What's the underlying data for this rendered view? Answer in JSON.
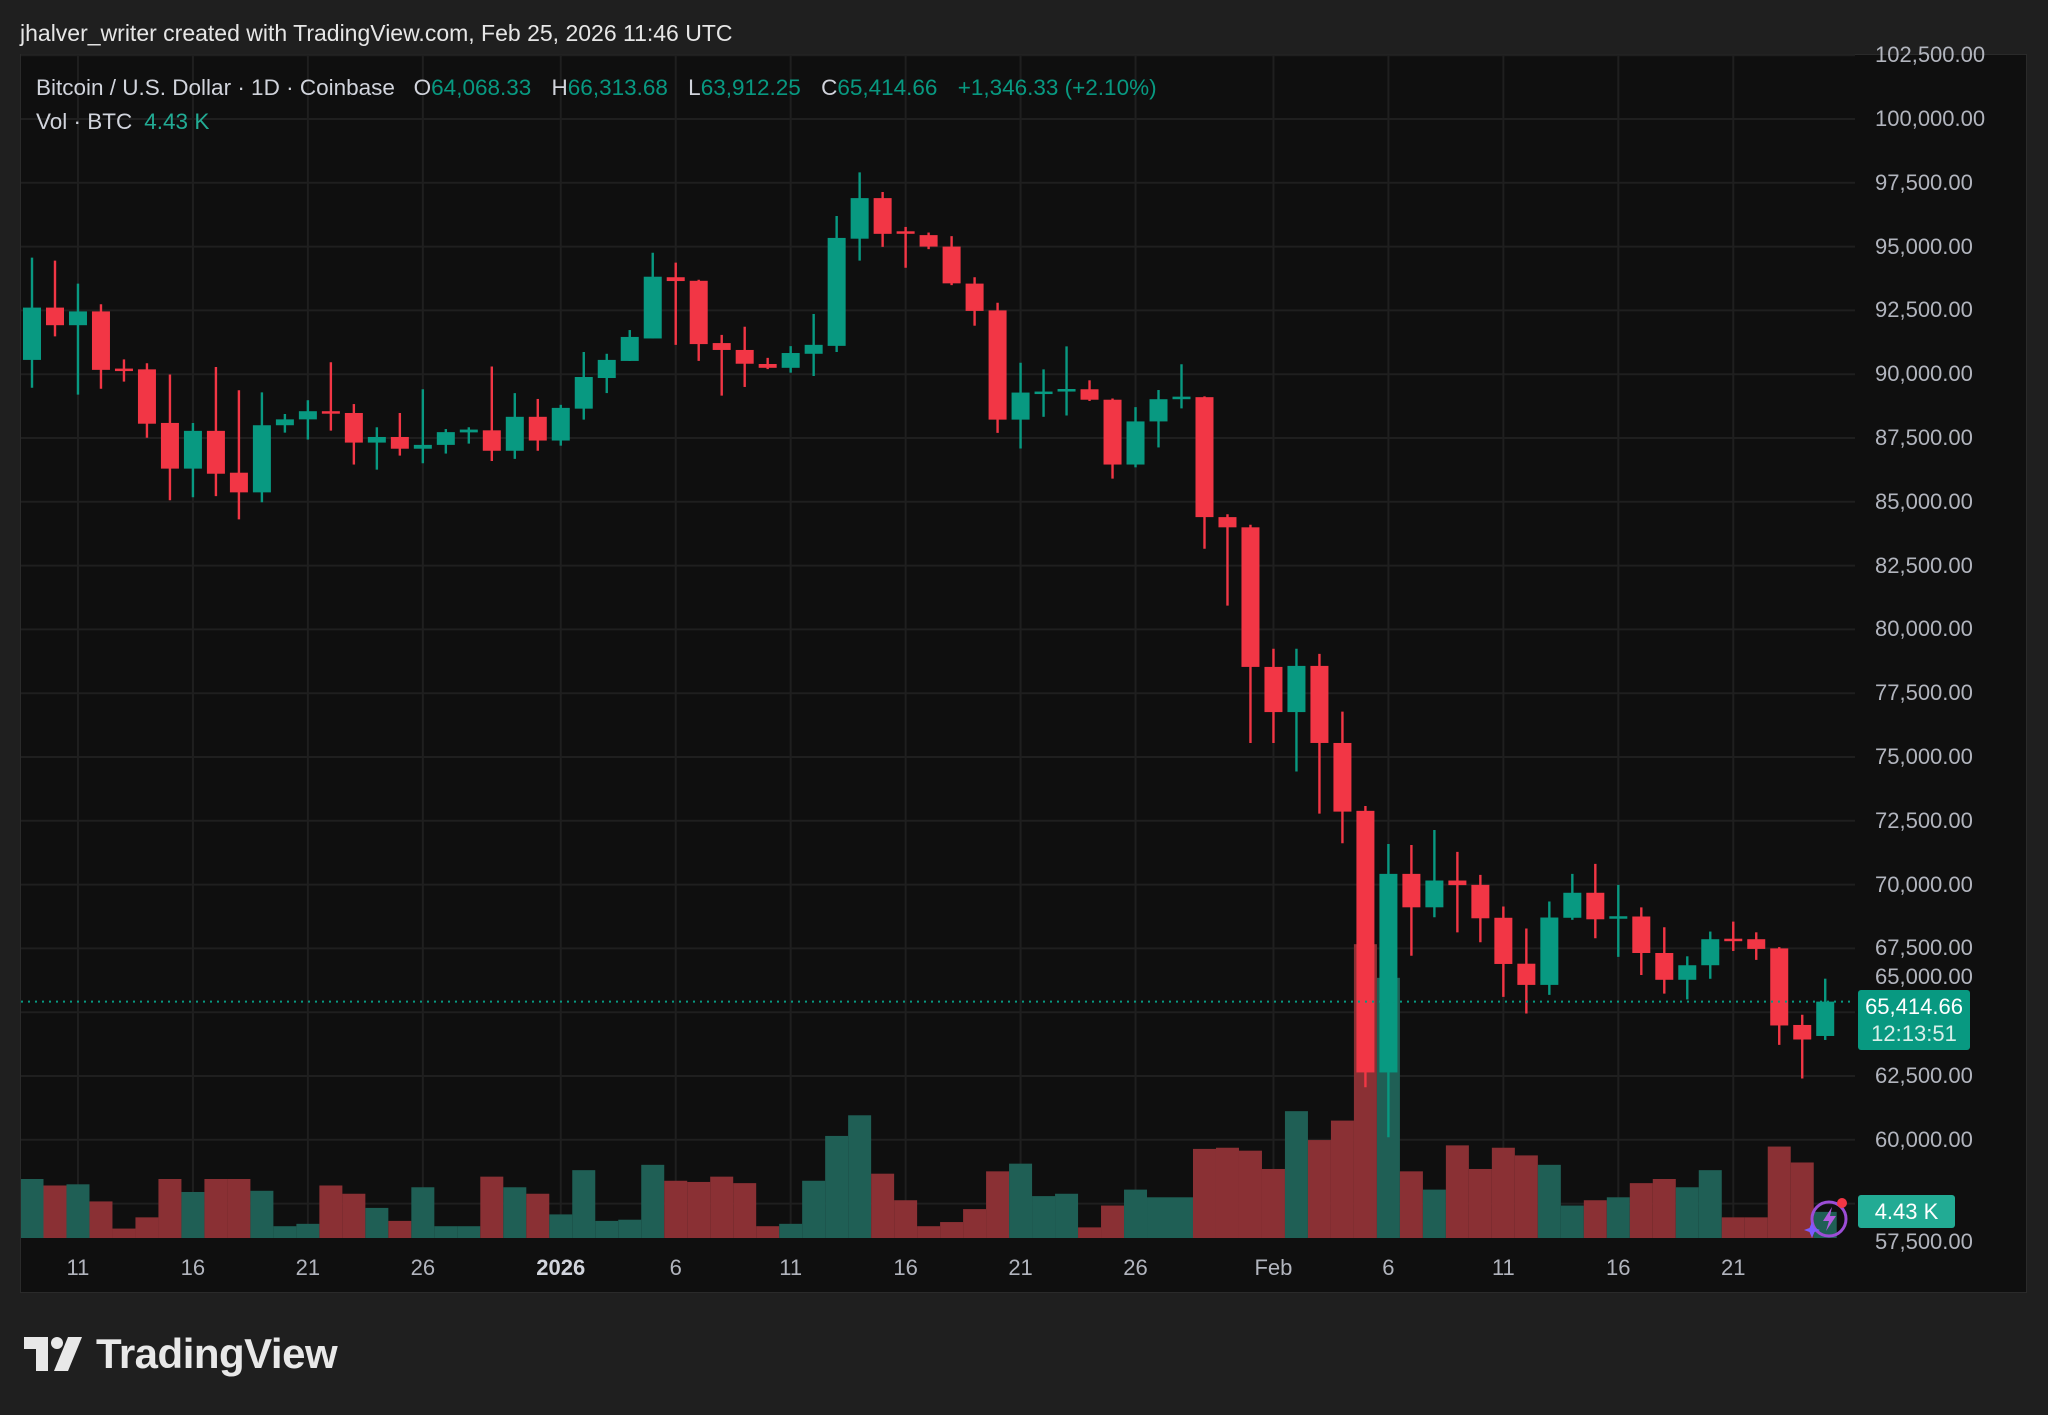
{
  "credit": "jhalver_writer created with TradingView.com, Feb 25, 2026 11:46 UTC",
  "legend": {
    "symbol": "Bitcoin / U.S. Dollar · 1D · Coinbase",
    "o_label": "O",
    "o": "64,068.33",
    "h_label": "H",
    "h": "66,313.68",
    "l_label": "L",
    "l": "63,912.25",
    "c_label": "C",
    "c": "65,414.66",
    "change": "+1,346.33 (+2.10%)",
    "vol_label": "Vol · BTC",
    "vol": "4.43 K"
  },
  "last_price": {
    "price": "65,414.66",
    "countdown": "12:13:51",
    "volume": "4.43 K"
  },
  "brand": "TradingView",
  "colors": {
    "up": "#089981",
    "down": "#f23645",
    "up_volume": "#1f5f55",
    "down_volume": "#8a3034",
    "background": "#0f0f0f",
    "ai_icon": "#9c4dd6"
  },
  "icons": [
    "tradingview-logo-icon",
    "ai-assistant-lightning-icon"
  ],
  "chart_data": {
    "type": "candlestick",
    "interval": "1D",
    "ylim": [
      57500,
      102500
    ],
    "grid": true,
    "price_ticks": [
      "102,500.00",
      "100,000.00",
      "97,500.00",
      "95,000.00",
      "92,500.00",
      "90,000.00",
      "87,500.00",
      "85,000.00",
      "82,500.00",
      "80,000.00",
      "77,500.00",
      "75,000.00",
      "72,500.00",
      "70,000.00",
      "67,500.00",
      "65,000.00",
      "62,500.00",
      "60,000.00",
      "57,500.00"
    ],
    "time_ticks": [
      {
        "label": "11",
        "date": "2025-12-11"
      },
      {
        "label": "16",
        "date": "2025-12-16"
      },
      {
        "label": "21",
        "date": "2025-12-21"
      },
      {
        "label": "26",
        "date": "2025-12-26"
      },
      {
        "label": "2026",
        "date": "2026-01-01",
        "bold": true
      },
      {
        "label": "6",
        "date": "2026-01-06"
      },
      {
        "label": "11",
        "date": "2026-01-11"
      },
      {
        "label": "16",
        "date": "2026-01-16"
      },
      {
        "label": "21",
        "date": "2026-01-21"
      },
      {
        "label": "26",
        "date": "2026-01-26"
      },
      {
        "label": "Feb",
        "date": "2026-02-01"
      },
      {
        "label": "6",
        "date": "2026-02-06"
      },
      {
        "label": "11",
        "date": "2026-02-11"
      },
      {
        "label": "16",
        "date": "2026-02-16"
      },
      {
        "label": "21",
        "date": "2026-02-21"
      }
    ],
    "volume_unit": "K BTC",
    "columns": [
      "date",
      "open",
      "high",
      "low",
      "close",
      "volume"
    ],
    "candles": [
      [
        "2025-12-09",
        90560,
        94570,
        89470,
        92610,
        10.0
      ],
      [
        "2025-12-10",
        92610,
        94450,
        91480,
        91920,
        8.9
      ],
      [
        "2025-12-11",
        91920,
        93550,
        89200,
        92460,
        9.1
      ],
      [
        "2025-12-12",
        92460,
        92740,
        89430,
        90170,
        6.2
      ],
      [
        "2025-12-13",
        90220,
        90580,
        89710,
        90180,
        1.6
      ],
      [
        "2025-12-14",
        90190,
        90430,
        87510,
        88060,
        3.5
      ],
      [
        "2025-12-15",
        88090,
        89990,
        85060,
        86300,
        10.0
      ],
      [
        "2025-12-16",
        86300,
        88090,
        85180,
        87780,
        7.8
      ],
      [
        "2025-12-17",
        87780,
        90280,
        85220,
        86100,
        10.0
      ],
      [
        "2025-12-18",
        86140,
        89370,
        84310,
        85370,
        10.0
      ],
      [
        "2025-12-19",
        85370,
        89290,
        84980,
        88000,
        8.0
      ],
      [
        "2025-12-20",
        88000,
        88440,
        87710,
        88230,
        2.0
      ],
      [
        "2025-12-21",
        88230,
        88980,
        87440,
        88550,
        2.4
      ],
      [
        "2025-12-22",
        88550,
        90470,
        87790,
        88480,
        8.9
      ],
      [
        "2025-12-23",
        88480,
        88830,
        86460,
        87320,
        7.5
      ],
      [
        "2025-12-24",
        87320,
        87920,
        86260,
        87540,
        5.1
      ],
      [
        "2025-12-25",
        87540,
        88480,
        86810,
        87080,
        2.9
      ],
      [
        "2025-12-26",
        87080,
        89410,
        86510,
        87230,
        8.6
      ],
      [
        "2025-12-27",
        87230,
        87850,
        86890,
        87730,
        2.0
      ],
      [
        "2025-12-28",
        87720,
        87920,
        87280,
        87830,
        2.0
      ],
      [
        "2025-12-29",
        87800,
        90300,
        86600,
        87000,
        10.4
      ],
      [
        "2025-12-30",
        87000,
        89260,
        86680,
        88330,
        8.6
      ],
      [
        "2025-12-31",
        88330,
        89030,
        87000,
        87400,
        7.5
      ],
      [
        "2026-01-01",
        87400,
        88800,
        87200,
        88680,
        4.0
      ],
      [
        "2026-01-02",
        88650,
        90870,
        88220,
        89890,
        11.5
      ],
      [
        "2026-01-03",
        89850,
        90800,
        89260,
        90560,
        2.9
      ],
      [
        "2026-01-04",
        90520,
        91730,
        90520,
        91460,
        3.1
      ],
      [
        "2026-01-05",
        91400,
        94760,
        91400,
        93820,
        12.4
      ],
      [
        "2026-01-06",
        93800,
        94370,
        91150,
        93650,
        9.7
      ],
      [
        "2026-01-07",
        93660,
        93700,
        90520,
        91180,
        9.5
      ],
      [
        "2026-01-08",
        91220,
        91540,
        89160,
        90950,
        10.4
      ],
      [
        "2026-01-09",
        90950,
        91860,
        89500,
        90410,
        9.3
      ],
      [
        "2026-01-10",
        90400,
        90640,
        90200,
        90250,
        2.0
      ],
      [
        "2026-01-11",
        90250,
        91100,
        90060,
        90830,
        2.4
      ],
      [
        "2026-01-12",
        90800,
        92360,
        89930,
        91150,
        9.7
      ],
      [
        "2026-01-13",
        91110,
        96200,
        90870,
        95340,
        17.3
      ],
      [
        "2026-01-14",
        95310,
        97910,
        94450,
        96900,
        20.8
      ],
      [
        "2026-01-15",
        96900,
        97140,
        94990,
        95500,
        10.9
      ],
      [
        "2026-01-16",
        95600,
        95770,
        94170,
        95550,
        6.4
      ],
      [
        "2026-01-17",
        95450,
        95550,
        94900,
        95000,
        2.0
      ],
      [
        "2026-01-18",
        95000,
        95410,
        93490,
        93560,
        2.7
      ],
      [
        "2026-01-19",
        93550,
        93800,
        91900,
        92480,
        4.9
      ],
      [
        "2026-01-20",
        92500,
        92800,
        87700,
        88220,
        11.3
      ],
      [
        "2026-01-21",
        88220,
        90450,
        87090,
        89280,
        12.6
      ],
      [
        "2026-01-22",
        89280,
        90190,
        88330,
        89320,
        7.1
      ],
      [
        "2026-01-23",
        89320,
        91090,
        88380,
        89420,
        7.5
      ],
      [
        "2026-01-24",
        89410,
        89760,
        88950,
        89000,
        1.8
      ],
      [
        "2026-01-25",
        89000,
        89050,
        85910,
        86460,
        5.5
      ],
      [
        "2026-01-26",
        86460,
        88710,
        86350,
        88150,
        8.2
      ],
      [
        "2026-01-27",
        88150,
        89380,
        87130,
        89020,
        6.9
      ],
      [
        "2026-01-28",
        89020,
        90390,
        88660,
        89120,
        6.9
      ],
      [
        "2026-01-29",
        89100,
        89130,
        83160,
        84400,
        15.1
      ],
      [
        "2026-01-30",
        84400,
        84510,
        80930,
        84000,
        15.3
      ],
      [
        "2026-01-31",
        84000,
        84100,
        75550,
        78530,
        14.8
      ],
      [
        "2026-02-01",
        78530,
        79240,
        75550,
        76760,
        11.7
      ],
      [
        "2026-02-02",
        76760,
        79240,
        74430,
        78570,
        21.5
      ],
      [
        "2026-02-03",
        78570,
        79040,
        72780,
        75550,
        16.6
      ],
      [
        "2026-02-04",
        75550,
        76780,
        71620,
        72860,
        19.9
      ],
      [
        "2026-02-05",
        72890,
        73080,
        62060,
        62640,
        49.8
      ],
      [
        "2026-02-06",
        62640,
        71590,
        60100,
        70420,
        44.1
      ],
      [
        "2026-02-07",
        70420,
        71550,
        67210,
        69110,
        11.3
      ],
      [
        "2026-02-08",
        69110,
        72140,
        68720,
        70160,
        8.2
      ],
      [
        "2026-02-09",
        70160,
        71280,
        68130,
        69980,
        15.7
      ],
      [
        "2026-02-10",
        69990,
        70380,
        67740,
        68680,
        11.7
      ],
      [
        "2026-02-11",
        68700,
        69140,
        65600,
        66890,
        15.3
      ],
      [
        "2026-02-12",
        66900,
        68280,
        64950,
        66070,
        14.0
      ],
      [
        "2026-02-13",
        66070,
        69340,
        65680,
        68710,
        12.4
      ],
      [
        "2026-02-14",
        68700,
        70420,
        68620,
        69680,
        5.5
      ],
      [
        "2026-02-15",
        69680,
        70810,
        67900,
        68640,
        6.4
      ],
      [
        "2026-02-16",
        68700,
        69990,
        67170,
        68760,
        6.9
      ],
      [
        "2026-02-17",
        68750,
        69110,
        66460,
        67320,
        9.3
      ],
      [
        "2026-02-18",
        67320,
        68330,
        65730,
        66270,
        10.0
      ],
      [
        "2026-02-19",
        66270,
        67190,
        65500,
        66840,
        8.6
      ],
      [
        "2026-02-20",
        66840,
        68160,
        66310,
        67860,
        11.5
      ],
      [
        "2026-02-21",
        67880,
        68550,
        67400,
        67830,
        3.5
      ],
      [
        "2026-02-22",
        67860,
        68130,
        67050,
        67480,
        3.5
      ],
      [
        "2026-02-23",
        67500,
        67550,
        63720,
        64480,
        15.5
      ],
      [
        "2026-02-24",
        64500,
        64900,
        62400,
        63930,
        12.8
      ],
      [
        "2026-02-25",
        64068.33,
        66313.68,
        63912.25,
        65414.66,
        4.43
      ]
    ]
  }
}
